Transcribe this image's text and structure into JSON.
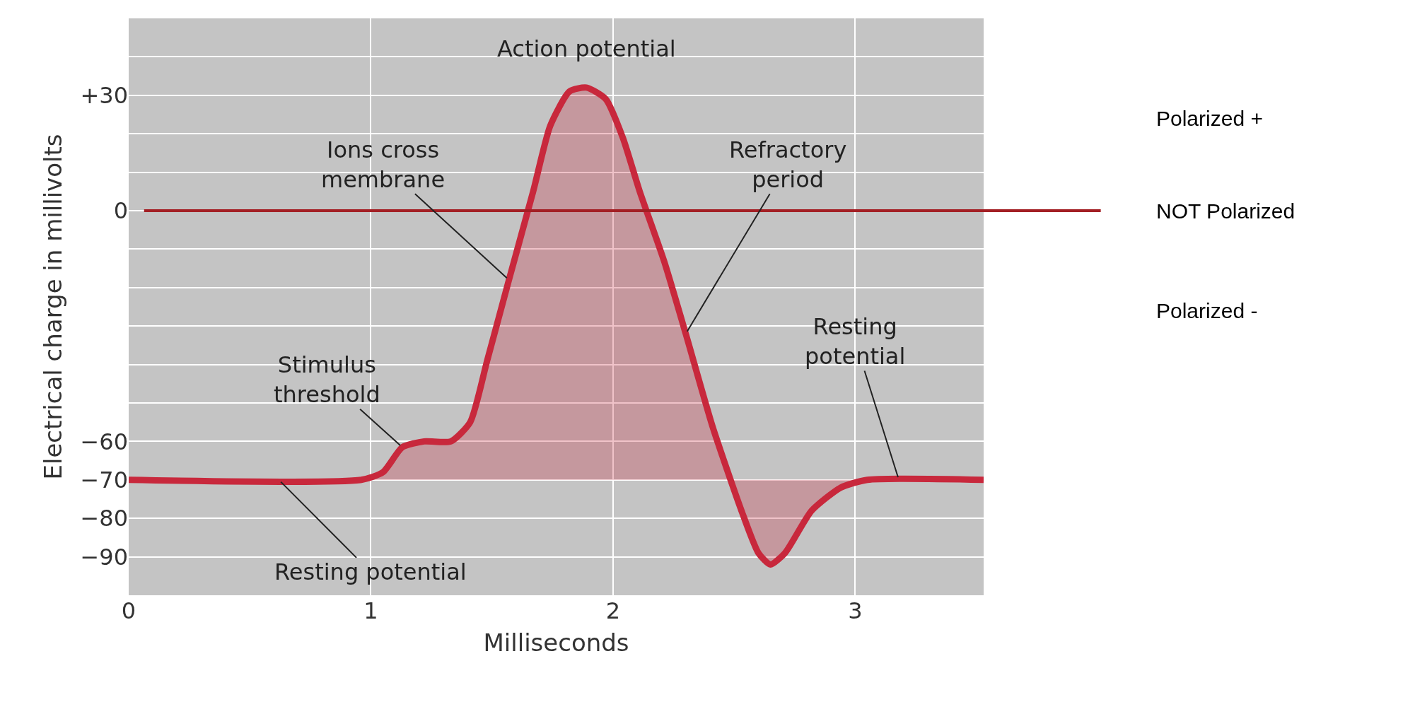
{
  "chart_data": {
    "type": "area",
    "xlabel": "Milliseconds",
    "ylabel": "Electrical charge in millivolts",
    "x": [
      0,
      0.96,
      1.05,
      1.13,
      1.22,
      1.33,
      1.41,
      1.48,
      1.57,
      1.67,
      1.74,
      1.82,
      1.89,
      1.97,
      2.04,
      2.11,
      2.21,
      2.3,
      2.41,
      2.53,
      2.6,
      2.65,
      2.71,
      2.82,
      2.94,
      3.05,
      3.53
    ],
    "series": [
      {
        "color": "#c8283c",
        "values": [
          -70,
          -70,
          -68,
          -61.5,
          -60,
          -60,
          -55,
          -39,
          -18,
          5,
          22,
          31,
          32,
          29,
          19,
          5,
          -13,
          -32,
          -56,
          -78,
          -89,
          -92,
          -89,
          -78,
          -72,
          -70,
          -70
        ]
      }
    ],
    "xlim": [
      0,
      3.53
    ],
    "xticks": [
      0,
      1,
      2,
      3
    ],
    "ylim": [
      -100,
      50
    ],
    "yticks": [
      {
        "value": -90,
        "label": "−90"
      },
      {
        "value": -80,
        "label": "−80"
      },
      {
        "value": -70,
        "label": "−70"
      },
      {
        "value": -60,
        "label": "−60"
      },
      {
        "value": -50,
        "label": null
      },
      {
        "value": -40,
        "label": null
      },
      {
        "value": -30,
        "label": null
      },
      {
        "value": -20,
        "label": null
      },
      {
        "value": -10,
        "label": null
      },
      0,
      {
        "value": 10,
        "label": null
      },
      {
        "value": 20,
        "label": null
      },
      {
        "value": 30,
        "label": "+30"
      },
      {
        "value": 40,
        "label": null
      }
    ],
    "grid": true,
    "ref_lines": [
      {
        "axis": "y",
        "value": 0,
        "label": "NOT Polarized",
        "color": "#a31f24"
      }
    ],
    "annotations": [
      {
        "text": "Action potential",
        "x": 1.89,
        "y": 32
      },
      {
        "text": "Ions cross\nmembrane",
        "x": 1.57,
        "y": -18
      },
      {
        "text": "Refractory\nperiod",
        "x": 2.3,
        "y": -32
      },
      {
        "text": "Stimulus\nthreshold",
        "x": 1.13,
        "y": -61.5
      },
      {
        "text": "Resting potential",
        "x": 0.62,
        "y": -70
      },
      {
        "text": "Resting\npotential",
        "x": 3.18,
        "y": -70
      },
      "Polarized +",
      "Polarized -"
    ]
  }
}
